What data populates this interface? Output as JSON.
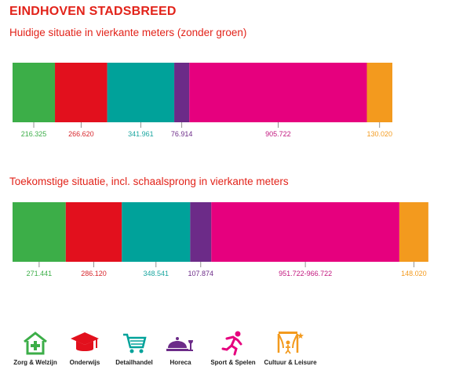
{
  "title": "EINDHOVEN STADSBREED",
  "chart_data": [
    {
      "type": "bar",
      "orientation": "horizontal-stacked",
      "title": "Huidige situatie in vierkante meters (zonder groen)",
      "categories": [
        "Zorg & Welzijn",
        "Onderwijs",
        "Detailhandel",
        "Horeca",
        "Sport & Spelen",
        "Cultuur & Leisure"
      ],
      "values": [
        216325,
        266620,
        341961,
        76914,
        905722,
        130020
      ],
      "labels": [
        "216.325",
        "266.620",
        "341.961",
        "76.914",
        "905.722",
        "130.020"
      ]
    },
    {
      "type": "bar",
      "orientation": "horizontal-stacked",
      "title": "Toekomstige situatie, incl. schaalsprong in vierkante meters",
      "categories": [
        "Zorg & Welzijn",
        "Onderwijs",
        "Detailhandel",
        "Horeca",
        "Sport & Spelen",
        "Cultuur & Leisure"
      ],
      "values": [
        271441,
        286120,
        348541,
        107874,
        959222,
        148020
      ],
      "range": [
        null,
        null,
        null,
        null,
        [
          951722,
          966722
        ],
        null
      ],
      "labels": [
        "271.441",
        "286.120",
        "348.541",
        "107.874",
        "951.722-966.722",
        "148.020"
      ]
    }
  ],
  "colors": [
    "#3cae48",
    "#e2101d",
    "#00a29a",
    "#6c2b88",
    "#e6007e",
    "#f39a1e"
  ],
  "label_colors": [
    "#3cae48",
    "#d7262c",
    "#1aa6a0",
    "#6c2b88",
    "#c2187f",
    "#f39a1e"
  ],
  "legend": [
    {
      "label": "Zorg & Welzijn",
      "icon": "house-plus-icon",
      "color": "#3cae48"
    },
    {
      "label": "Onderwijs",
      "icon": "graduation-cap-icon",
      "color": "#e2101d"
    },
    {
      "label": "Detailhandel",
      "icon": "shopping-cart-icon",
      "color": "#00a29a"
    },
    {
      "label": "Horeca",
      "icon": "dining-icon",
      "color": "#6c2b88"
    },
    {
      "label": "Sport & Spelen",
      "icon": "runner-icon",
      "color": "#e6007e"
    },
    {
      "label": "Cultuur & Leisure",
      "icon": "theater-icon",
      "color": "#f39a1e"
    }
  ]
}
